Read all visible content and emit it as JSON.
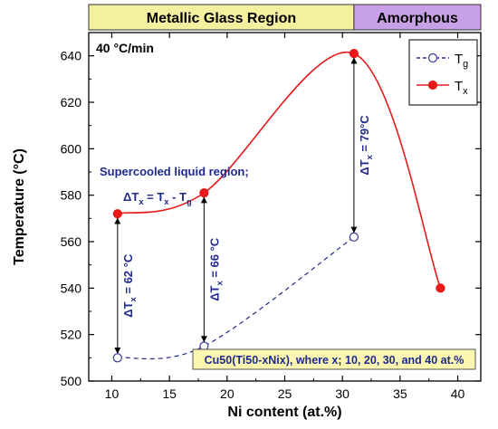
{
  "chart_data": {
    "type": "line",
    "title": "",
    "xlabel": "Ni content (at.%)",
    "ylabel": "Temperature (°C)",
    "xlim": [
      8,
      42
    ],
    "ylim": [
      500,
      650
    ],
    "xticks": [
      10,
      15,
      20,
      25,
      30,
      35,
      40
    ],
    "yticks": [
      500,
      520,
      540,
      560,
      580,
      600,
      620,
      640
    ],
    "grid": false,
    "legend_position": "top-right",
    "series": [
      {
        "name_main": "T",
        "name_sub": "g",
        "style": "dashed-open-circle",
        "color": "#1f2a8a",
        "x": [
          10.5,
          18,
          31
        ],
        "y": [
          510,
          515,
          562
        ]
      },
      {
        "name_main": "T",
        "name_sub": "x",
        "style": "solid-filled-circle",
        "color": "#e8191a",
        "x": [
          10.5,
          18,
          31,
          38.5
        ],
        "y": [
          572,
          581,
          641,
          540
        ]
      }
    ],
    "regions": [
      {
        "label": "Metallic Glass Region",
        "x_range": [
          8,
          31
        ],
        "color": "#f5efa0"
      },
      {
        "label": "Amorphous",
        "x_range": [
          31,
          42
        ],
        "color": "#c8a0e6"
      }
    ],
    "heating_rate": "40 °C/min",
    "annotations": {
      "supercooled_line1": "Supercooled liquid region;",
      "formula": {
        "d": "ΔT",
        "x": "x",
        "eq": " = T",
        "x2": "x",
        "minus": " - T",
        "g": "g"
      },
      "gaps": [
        {
          "x": 10.5,
          "from": 510,
          "to": 572,
          "value": " = 62 °C"
        },
        {
          "x": 18,
          "from": 515,
          "to": 581,
          "value": " = 66 °C"
        },
        {
          "x": 31,
          "from": 562,
          "to": 641,
          "value": " = 79°C"
        }
      ],
      "composition_box": "Cu50(Ti50-xNix), where x; 10, 20, 30, and 40 at.%"
    }
  }
}
